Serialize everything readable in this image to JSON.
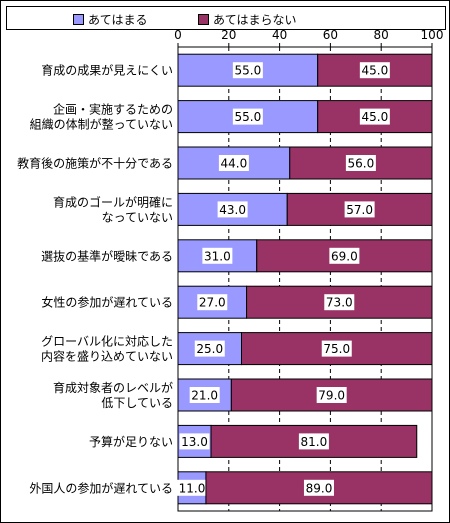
{
  "chart_data": {
    "type": "bar",
    "orientation": "horizontal",
    "stacked": true,
    "xlim": [
      0,
      100
    ],
    "x_ticks": [
      0,
      20,
      40,
      60,
      80,
      100
    ],
    "grid": "vertical dashed",
    "legend_position": "top",
    "categories": [
      [
        "育成の成果が見えにくい"
      ],
      [
        "企画・実施するための",
        "組織の体制が整っていない"
      ],
      [
        "教育後の施策が不十分である"
      ],
      [
        "育成のゴールが明確に",
        "なっていない"
      ],
      [
        "選抜の基準が曖昧である"
      ],
      [
        "女性の参加が遅れている"
      ],
      [
        "グローバル化に対応した",
        "内容を盛り込めていない"
      ],
      [
        "育成対象者のレベルが",
        "低下している"
      ],
      [
        "予算が足りない"
      ],
      [
        "外国人の参加が遅れている"
      ]
    ],
    "series": [
      {
        "name": "あてはまる",
        "color": "#9999ff",
        "values": [
          55.0,
          55.0,
          44.0,
          43.0,
          31.0,
          27.0,
          25.0,
          21.0,
          13.0,
          11.0
        ],
        "labels": [
          "55.0",
          "55.0",
          "44.0",
          "43.0",
          "31.0",
          "27.0",
          "25.0",
          "21.0",
          "13.0",
          "11.0"
        ]
      },
      {
        "name": "あてはまらない",
        "color": "#993366",
        "values": [
          45.0,
          45.0,
          56.0,
          57.0,
          69.0,
          73.0,
          75.0,
          79.0,
          81.0,
          89.0
        ],
        "labels": [
          "45.0",
          "45.0",
          "56.0",
          "57.0",
          "69.0",
          "73.0",
          "75.0",
          "79.0",
          "81.0",
          "89.0"
        ]
      }
    ]
  }
}
